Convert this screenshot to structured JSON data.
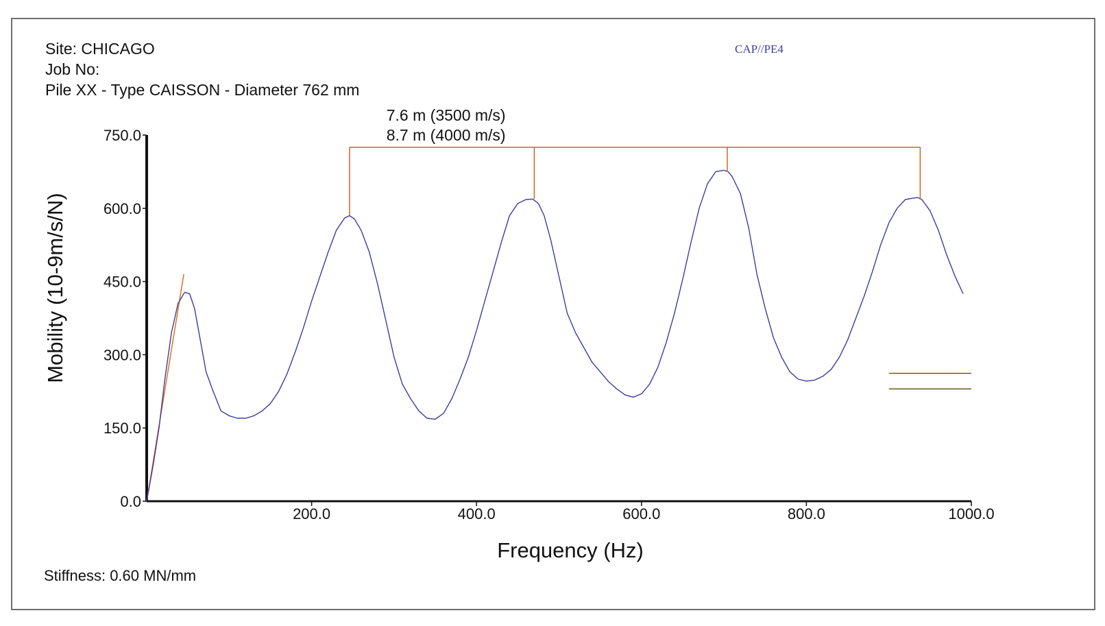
{
  "header": {
    "site": "Site: CHICAGO",
    "job": "Job No:",
    "pile": "Pile XX - Type CAISSON - Diameter 762 mm"
  },
  "tag": "CAP//PE4",
  "footer": {
    "stiffness": "Stiffness: 0.60 MN/mm"
  },
  "chart_data": {
    "type": "line",
    "title": "",
    "xlabel": "Frequency (Hz)",
    "ylabel": "Mobility (10-9m/s/N)",
    "xlim": [
      0,
      1000
    ],
    "ylim": [
      0,
      750
    ],
    "x_ticks": [
      200,
      400,
      600,
      800,
      1000
    ],
    "x_tick_labels": [
      "200.0",
      "400.0",
      "600.0",
      "800.0",
      "1000.0"
    ],
    "y_ticks": [
      0,
      150,
      300,
      450,
      600,
      750
    ],
    "y_tick_labels": [
      "0.0",
      "150.0",
      "300.0",
      "450.0",
      "600.0",
      "750.0"
    ],
    "grid": false,
    "colors": {
      "curve": "#3c3c9c",
      "annotation": "#d4621e",
      "stiffness_line": "#e07020",
      "ref_lines": "#6b5a1e",
      "axis": "#111111"
    },
    "series": [
      {
        "x": [
          0,
          8,
          15,
          22,
          30,
          38,
          46,
          52,
          58,
          65,
          72,
          80,
          90,
          100,
          110,
          120,
          130,
          140,
          150,
          160,
          170,
          180,
          190,
          200,
          210,
          220,
          230,
          240,
          246,
          252,
          260,
          270,
          280,
          290,
          300,
          310,
          320,
          330,
          340,
          350,
          360,
          370,
          380,
          390,
          400,
          410,
          420,
          430,
          440,
          450,
          460,
          468,
          475,
          482,
          490,
          500,
          510,
          520,
          530,
          540,
          550,
          560,
          570,
          580,
          590,
          600,
          610,
          620,
          630,
          640,
          650,
          660,
          670,
          680,
          690,
          700,
          705,
          710,
          720,
          730,
          740,
          750,
          760,
          770,
          780,
          790,
          800,
          810,
          820,
          830,
          840,
          850,
          860,
          870,
          880,
          890,
          900,
          910,
          920,
          930,
          935,
          940,
          950,
          960,
          970,
          980,
          990
        ],
        "y": [
          0,
          75,
          150,
          250,
          345,
          405,
          428,
          425,
          395,
          330,
          265,
          228,
          185,
          175,
          170,
          170,
          175,
          185,
          200,
          225,
          260,
          305,
          355,
          410,
          460,
          510,
          555,
          580,
          585,
          578,
          555,
          510,
          445,
          370,
          295,
          240,
          210,
          185,
          170,
          168,
          180,
          210,
          250,
          295,
          350,
          410,
          470,
          530,
          585,
          610,
          618,
          619,
          610,
          585,
          535,
          460,
          385,
          345,
          315,
          285,
          265,
          245,
          230,
          218,
          213,
          220,
          240,
          275,
          325,
          385,
          455,
          530,
          600,
          650,
          675,
          678,
          675,
          665,
          630,
          560,
          465,
          395,
          335,
          295,
          265,
          250,
          246,
          248,
          256,
          270,
          295,
          330,
          375,
          420,
          470,
          525,
          570,
          600,
          618,
          621,
          622,
          618,
          595,
          555,
          505,
          462,
          425
        ]
      }
    ],
    "stiffness_line": {
      "x": [
        0,
        45
      ],
      "y": [
        0,
        465
      ]
    },
    "resonance_markers": {
      "x": [
        246,
        470,
        704,
        938
      ],
      "bracket_y": 725
    },
    "annotations": [
      "7.6 m (3500 m/s)",
      "8.7 m (4000 m/s)"
    ],
    "reference_lines": [
      {
        "x": [
          900,
          1000
        ],
        "y": 262
      },
      {
        "x": [
          900,
          1000
        ],
        "y": 230
      }
    ]
  }
}
